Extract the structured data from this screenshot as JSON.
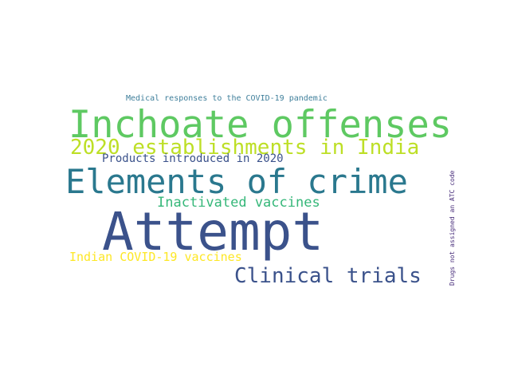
{
  "words": [
    {
      "text": "Medical responses to the COVID-19 pandemic",
      "color": "#3f7f9b"
    },
    {
      "text": "Inchoate offenses",
      "color": "#5ec962"
    },
    {
      "text": "2020 establishments in India",
      "color": "#bddf26"
    },
    {
      "text": "Products introduced in 2020",
      "color": "#3b528b"
    },
    {
      "text": "Elements of crime",
      "color": "#2a788e"
    },
    {
      "text": "Inactivated vaccines",
      "color": "#35b779"
    },
    {
      "text": "Attempt",
      "color": "#3b528b"
    },
    {
      "text": "Indian COVID-19 vaccines",
      "color": "#fde725"
    },
    {
      "text": "Clinical trials",
      "color": "#3b528b"
    },
    {
      "text": "Drugs not assigned an ATC code",
      "color": "#472c7a"
    }
  ]
}
